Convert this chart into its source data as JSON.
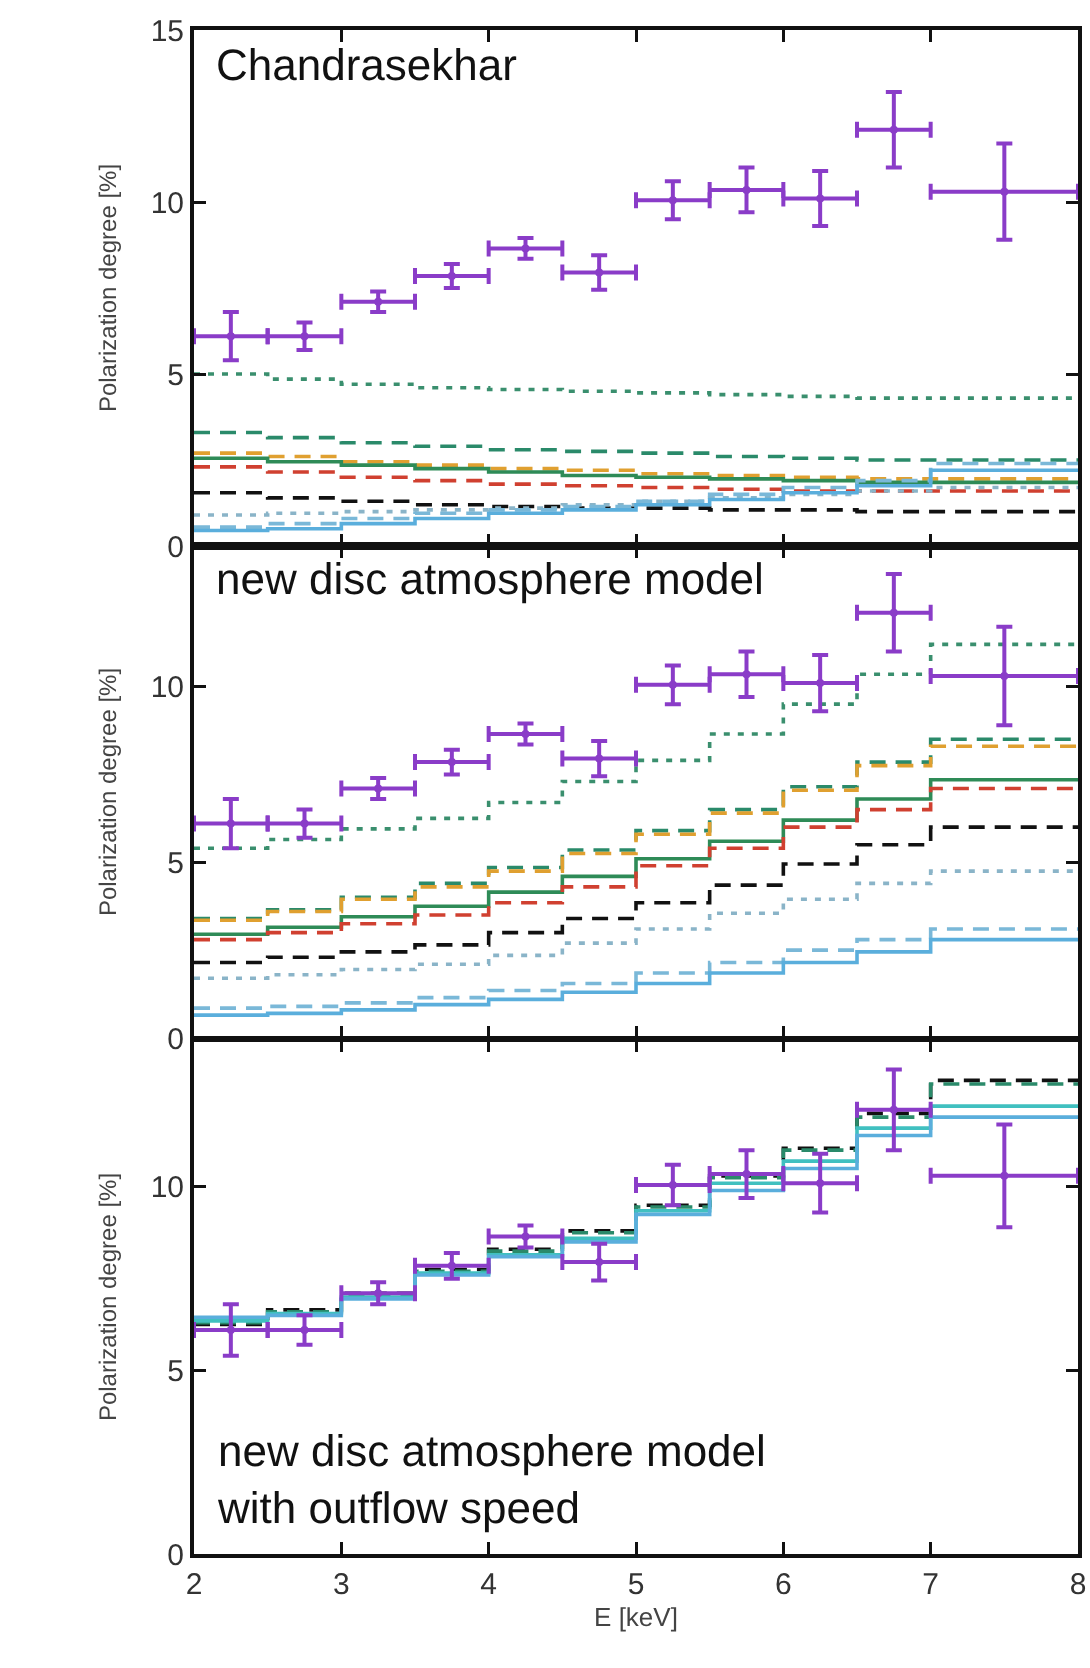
{
  "chart_data": [
    {
      "type": "line",
      "title": "Chandrasekhar",
      "ylabel": "Polarization degree [%]",
      "xlim": [
        2,
        8
      ],
      "xticks": [
        2,
        3,
        4,
        5,
        6,
        7,
        8
      ],
      "ylim": [
        0,
        15
      ],
      "yticks": [
        0,
        5,
        10,
        15
      ],
      "tick_labels": "y",
      "grid": false,
      "series": [
        {
          "type": "step",
          "color": "#3a8f6e",
          "line_style": "dotted",
          "x": [
            2,
            2.5,
            3,
            3.5,
            4,
            4.5,
            5,
            5.5,
            6,
            6.5,
            7,
            8
          ],
          "values": [
            5.0,
            4.85,
            4.7,
            4.6,
            4.55,
            4.5,
            4.45,
            4.4,
            4.35,
            4.3,
            4.3,
            4.3
          ]
        },
        {
          "type": "step",
          "color": "#2a8a6a",
          "line_style": "dashed",
          "x": [
            2,
            2.5,
            3,
            3.5,
            4,
            4.5,
            5,
            5.5,
            6,
            6.5,
            7,
            8
          ],
          "values": [
            3.3,
            3.15,
            3.0,
            2.9,
            2.8,
            2.75,
            2.7,
            2.6,
            2.55,
            2.5,
            2.5,
            2.5
          ]
        },
        {
          "type": "step",
          "color": "#e0a030",
          "line_style": "dashed",
          "x": [
            2,
            2.5,
            3,
            3.5,
            4,
            4.5,
            5,
            5.5,
            6,
            6.5,
            7,
            8
          ],
          "values": [
            2.7,
            2.6,
            2.45,
            2.35,
            2.25,
            2.2,
            2.1,
            2.05,
            2.0,
            1.95,
            1.95,
            1.95
          ]
        },
        {
          "type": "step",
          "color": "#2e8b57",
          "line_style": "solid",
          "x": [
            2,
            2.5,
            3,
            3.5,
            4,
            4.5,
            5,
            5.5,
            6,
            6.5,
            7,
            8
          ],
          "values": [
            2.55,
            2.45,
            2.35,
            2.25,
            2.15,
            2.05,
            2.0,
            1.95,
            1.9,
            1.85,
            1.85,
            1.85
          ]
        },
        {
          "type": "step",
          "color": "#d04030",
          "line_style": "dashed",
          "x": [
            2,
            2.5,
            3,
            3.5,
            4,
            4.5,
            5,
            5.5,
            6,
            6.5,
            7,
            8
          ],
          "values": [
            2.3,
            2.15,
            2.0,
            1.9,
            1.8,
            1.75,
            1.7,
            1.65,
            1.6,
            1.6,
            1.6,
            1.6
          ]
        },
        {
          "type": "step",
          "color": "#111111",
          "line_style": "dashed",
          "x": [
            2,
            2.5,
            3,
            3.5,
            4,
            4.5,
            5,
            5.5,
            6,
            6.5,
            7,
            8
          ],
          "values": [
            1.55,
            1.4,
            1.3,
            1.2,
            1.15,
            1.1,
            1.1,
            1.05,
            1.05,
            1.0,
            1.0,
            1.0
          ]
        },
        {
          "type": "step",
          "color": "#8ab4c8",
          "line_style": "dotted",
          "x": [
            2,
            2.5,
            3,
            3.5,
            4,
            4.5,
            5,
            5.5,
            6,
            6.5,
            7,
            8
          ],
          "values": [
            0.9,
            0.95,
            1.0,
            1.05,
            1.1,
            1.2,
            1.3,
            1.4,
            1.5,
            1.6,
            1.7,
            1.7
          ]
        },
        {
          "type": "step",
          "color": "#7ab8d8",
          "line_style": "dashed",
          "x": [
            2,
            2.5,
            3,
            3.5,
            4,
            4.5,
            5,
            5.5,
            6,
            6.5,
            7,
            8
          ],
          "values": [
            0.55,
            0.65,
            0.8,
            0.95,
            1.05,
            1.15,
            1.3,
            1.5,
            1.7,
            1.9,
            2.4,
            2.4
          ]
        },
        {
          "type": "step",
          "color": "#5aaedc",
          "line_style": "solid",
          "x": [
            2,
            2.5,
            3,
            3.5,
            4,
            4.5,
            5,
            5.5,
            6,
            6.5,
            7,
            8
          ],
          "values": [
            0.45,
            0.5,
            0.65,
            0.8,
            0.95,
            1.05,
            1.2,
            1.35,
            1.55,
            1.75,
            2.2,
            2.2
          ]
        },
        {
          "type": "scatter",
          "color": "#8a3cc8",
          "x": [
            2.25,
            2.75,
            3.25,
            3.75,
            4.25,
            4.75,
            5.25,
            5.75,
            6.25,
            6.75,
            7.5
          ],
          "values": [
            6.1,
            6.1,
            7.1,
            7.85,
            8.65,
            7.95,
            10.05,
            10.35,
            10.1,
            12.1,
            10.3
          ],
          "errors": [
            0.7,
            0.4,
            0.3,
            0.35,
            0.3,
            0.5,
            0.55,
            0.65,
            0.8,
            1.1,
            1.4
          ],
          "xerrors": [
            0.25,
            0.25,
            0.25,
            0.25,
            0.25,
            0.25,
            0.25,
            0.25,
            0.25,
            0.25,
            0.5
          ]
        }
      ]
    },
    {
      "type": "line",
      "title": "new disc atmosphere model",
      "ylabel": "Polarization degree [%]",
      "xlim": [
        2,
        8
      ],
      "xticks": [
        2,
        3,
        4,
        5,
        6,
        7,
        8
      ],
      "ylim": [
        0,
        14
      ],
      "yticks": [
        0,
        5,
        10
      ],
      "tick_labels": "y",
      "grid": false,
      "series": [
        {
          "type": "step",
          "color": "#3a8f6e",
          "line_style": "dotted",
          "x": [
            2,
            2.5,
            3,
            3.5,
            4,
            4.5,
            5,
            5.5,
            6,
            6.5,
            7,
            8
          ],
          "values": [
            5.4,
            5.65,
            5.95,
            6.25,
            6.7,
            7.3,
            7.9,
            8.65,
            9.5,
            10.35,
            11.2,
            11.2
          ]
        },
        {
          "type": "step",
          "color": "#2a8a6a",
          "line_style": "dashed",
          "x": [
            2,
            2.5,
            3,
            3.5,
            4,
            4.5,
            5,
            5.5,
            6,
            6.5,
            7,
            8
          ],
          "values": [
            3.4,
            3.65,
            4.0,
            4.4,
            4.85,
            5.35,
            5.9,
            6.5,
            7.15,
            7.85,
            8.5,
            8.5
          ]
        },
        {
          "type": "step",
          "color": "#e0a030",
          "line_style": "dashed",
          "x": [
            2,
            2.5,
            3,
            3.5,
            4,
            4.5,
            5,
            5.5,
            6,
            6.5,
            7,
            8
          ],
          "values": [
            3.35,
            3.6,
            3.95,
            4.3,
            4.75,
            5.25,
            5.8,
            6.4,
            7.05,
            7.75,
            8.3,
            8.3
          ]
        },
        {
          "type": "step",
          "color": "#2e8b57",
          "line_style": "solid",
          "x": [
            2,
            2.5,
            3,
            3.5,
            4,
            4.5,
            5,
            5.5,
            6,
            6.5,
            7,
            8
          ],
          "values": [
            2.95,
            3.15,
            3.45,
            3.75,
            4.15,
            4.6,
            5.1,
            5.6,
            6.2,
            6.8,
            7.35,
            7.35
          ]
        },
        {
          "type": "step",
          "color": "#d04030",
          "line_style": "dashed",
          "x": [
            2,
            2.5,
            3,
            3.5,
            4,
            4.5,
            5,
            5.5,
            6,
            6.5,
            7,
            8
          ],
          "values": [
            2.8,
            3.0,
            3.25,
            3.5,
            3.85,
            4.3,
            4.9,
            5.4,
            6.0,
            6.5,
            7.1,
            7.1
          ]
        },
        {
          "type": "step",
          "color": "#111111",
          "line_style": "dashed",
          "x": [
            2,
            2.5,
            3,
            3.5,
            4,
            4.5,
            5,
            5.5,
            6,
            6.5,
            7,
            8
          ],
          "values": [
            2.15,
            2.3,
            2.45,
            2.65,
            3.0,
            3.4,
            3.85,
            4.35,
            4.95,
            5.5,
            6.0,
            6.0
          ]
        },
        {
          "type": "step",
          "color": "#8ab4c8",
          "line_style": "dotted",
          "x": [
            2,
            2.5,
            3,
            3.5,
            4,
            4.5,
            5,
            5.5,
            6,
            6.5,
            7,
            8
          ],
          "values": [
            1.7,
            1.8,
            1.95,
            2.1,
            2.35,
            2.7,
            3.1,
            3.55,
            3.95,
            4.4,
            4.75,
            4.75
          ]
        },
        {
          "type": "step",
          "color": "#7ab8d8",
          "line_style": "dashed",
          "x": [
            2,
            2.5,
            3,
            3.5,
            4,
            4.5,
            5,
            5.5,
            6,
            6.5,
            7,
            8
          ],
          "values": [
            0.85,
            0.9,
            1.0,
            1.15,
            1.35,
            1.55,
            1.85,
            2.15,
            2.5,
            2.8,
            3.1,
            3.1
          ]
        },
        {
          "type": "step",
          "color": "#5aaedc",
          "line_style": "solid",
          "x": [
            2,
            2.5,
            3,
            3.5,
            4,
            4.5,
            5,
            5.5,
            6,
            6.5,
            7,
            8
          ],
          "values": [
            0.65,
            0.7,
            0.8,
            0.95,
            1.1,
            1.3,
            1.55,
            1.85,
            2.15,
            2.45,
            2.8,
            2.8
          ]
        },
        {
          "type": "scatter",
          "color": "#8a3cc8",
          "x": [
            2.25,
            2.75,
            3.25,
            3.75,
            4.25,
            4.75,
            5.25,
            5.75,
            6.25,
            6.75,
            7.5
          ],
          "values": [
            6.1,
            6.1,
            7.1,
            7.85,
            8.65,
            7.95,
            10.05,
            10.35,
            10.1,
            12.1,
            10.3
          ],
          "errors": [
            0.7,
            0.4,
            0.3,
            0.35,
            0.3,
            0.5,
            0.55,
            0.65,
            0.8,
            1.1,
            1.4
          ],
          "xerrors": [
            0.25,
            0.25,
            0.25,
            0.25,
            0.25,
            0.25,
            0.25,
            0.25,
            0.25,
            0.25,
            0.5
          ]
        }
      ]
    },
    {
      "type": "line",
      "title": "new disc atmosphere model with outflow speed",
      "ylabel": "Polarization degree [%]",
      "xlabel": "E [keV]",
      "xlim": [
        2,
        8
      ],
      "xticks": [
        2,
        3,
        4,
        5,
        6,
        7,
        8
      ],
      "ylim": [
        0,
        14
      ],
      "yticks": [
        0,
        5,
        10
      ],
      "grid": false,
      "series": [
        {
          "type": "step",
          "color": "#111111",
          "line_style": "dashed",
          "x": [
            2,
            2.5,
            3,
            3.5,
            4,
            4.5,
            5,
            5.5,
            6,
            6.5,
            7,
            8
          ],
          "values": [
            6.25,
            6.65,
            7.1,
            7.75,
            8.3,
            8.8,
            9.5,
            10.3,
            11.05,
            12.0,
            12.9,
            12.9
          ]
        },
        {
          "type": "step",
          "color": "#2a8a6a",
          "line_style": "dashed",
          "x": [
            2,
            2.5,
            3,
            3.5,
            4,
            4.5,
            5,
            5.5,
            6,
            6.5,
            7,
            8
          ],
          "values": [
            6.3,
            6.6,
            7.05,
            7.7,
            8.25,
            8.75,
            9.45,
            10.25,
            11.0,
            11.9,
            12.8,
            12.8
          ]
        },
        {
          "type": "step",
          "color": "#40c0c0",
          "line_style": "solid",
          "x": [
            2,
            2.5,
            3,
            3.5,
            4,
            4.5,
            5,
            5.5,
            6,
            6.5,
            7,
            8
          ],
          "values": [
            6.35,
            6.55,
            7.0,
            7.65,
            8.15,
            8.6,
            9.35,
            10.1,
            10.7,
            11.6,
            12.2,
            12.2
          ]
        },
        {
          "type": "step",
          "color": "#5aaedc",
          "line_style": "solid",
          "x": [
            2,
            2.5,
            3,
            3.5,
            4,
            4.5,
            5,
            5.5,
            6,
            6.5,
            7,
            8
          ],
          "values": [
            6.45,
            6.5,
            6.95,
            7.6,
            8.1,
            8.5,
            9.25,
            9.9,
            10.5,
            11.4,
            11.9,
            11.9
          ]
        },
        {
          "type": "scatter",
          "color": "#8a3cc8",
          "x": [
            2.25,
            2.75,
            3.25,
            3.75,
            4.25,
            4.75,
            5.25,
            5.75,
            6.25,
            6.75,
            7.5
          ],
          "values": [
            6.1,
            6.1,
            7.1,
            7.85,
            8.65,
            7.95,
            10.05,
            10.35,
            10.1,
            12.1,
            10.3
          ],
          "errors": [
            0.7,
            0.4,
            0.3,
            0.35,
            0.3,
            0.5,
            0.55,
            0.65,
            0.8,
            1.1,
            1.4
          ],
          "xerrors": [
            0.25,
            0.25,
            0.25,
            0.25,
            0.25,
            0.25,
            0.25,
            0.25,
            0.25,
            0.25,
            0.5
          ]
        }
      ]
    }
  ]
}
